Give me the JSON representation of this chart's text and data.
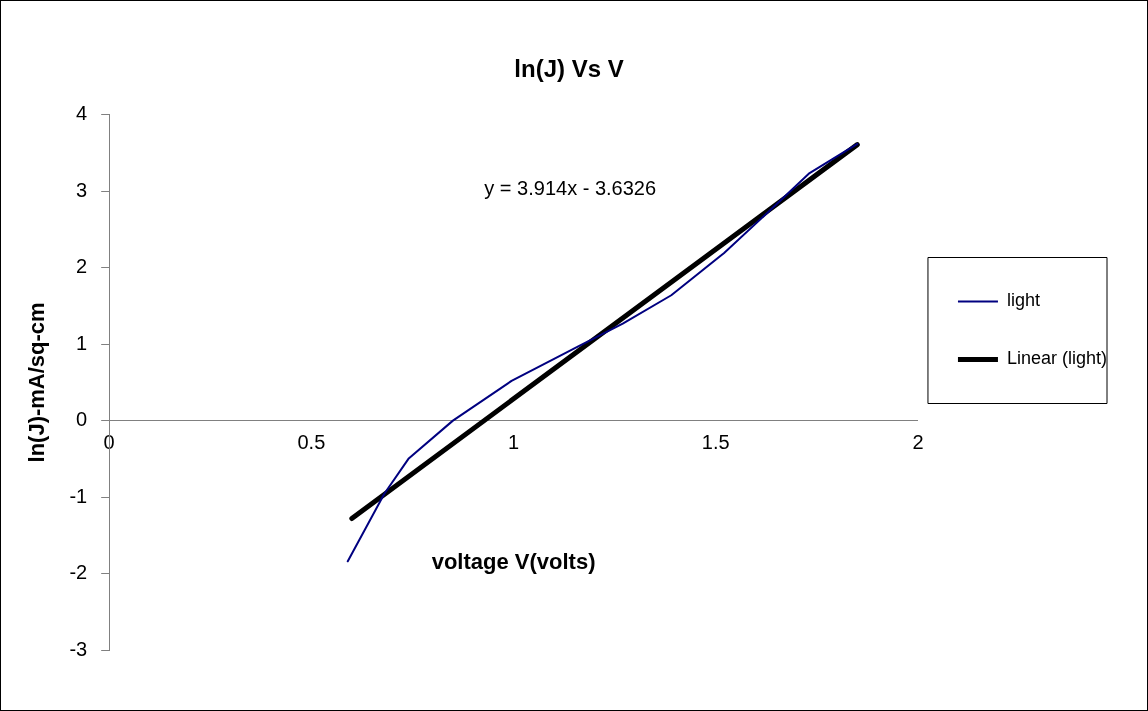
{
  "chart_data": {
    "type": "line",
    "title": "ln(J) Vs V",
    "xlabel": "voltage V(volts)",
    "ylabel": "ln(J)-mA/sq-cm",
    "annotations": [
      "y = 3.914x - 3.6326"
    ],
    "series": [
      {
        "name": "light",
        "color": "#000080",
        "x": [
          0.59,
          0.68,
          0.74,
          0.85,
          0.995,
          1.16,
          1.27,
          1.39,
          1.52,
          1.62,
          1.73,
          1.85
        ],
        "values": [
          -1.84,
          -0.96,
          -0.5,
          0,
          0.52,
          0.97,
          1.27,
          1.64,
          2.19,
          2.68,
          3.23,
          3.62
        ]
      },
      {
        "name": "Linear (light)",
        "color": "#000000",
        "type": "line",
        "x": [
          0.6,
          1.85
        ],
        "values": [
          -1.28,
          3.61
        ]
      }
    ],
    "xlim": [
      0,
      2
    ],
    "xticks": [
      0,
      0.5,
      1,
      1.5,
      2
    ],
    "ylim": [
      -3,
      4
    ],
    "yticks": [
      -3,
      -2,
      -1,
      0,
      1,
      2,
      3,
      4
    ],
    "grid": false,
    "legend": "right",
    "marker": "none",
    "line_style": "solid"
  }
}
